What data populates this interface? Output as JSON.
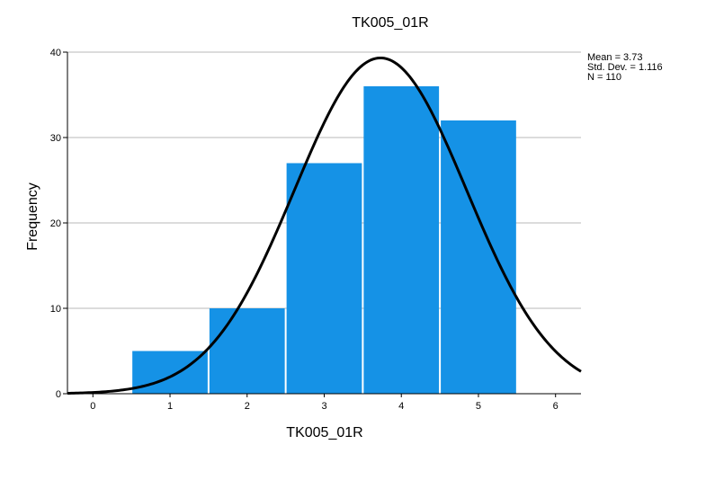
{
  "chart_data": {
    "type": "bar",
    "title": "TK005_01R",
    "xlabel": "TK005_01R",
    "ylabel": "Frequency",
    "categories": [
      "1",
      "2",
      "3",
      "4",
      "5"
    ],
    "x": [
      1,
      2,
      3,
      4,
      5
    ],
    "values": [
      5,
      10,
      27,
      36,
      32
    ],
    "xlim": [
      -0.33,
      6.33
    ],
    "ylim": [
      0,
      40
    ],
    "x_ticks": [
      "0",
      "1",
      "2",
      "3",
      "4",
      "5",
      "6"
    ],
    "y_ticks": [
      "0",
      "10",
      "20",
      "30",
      "40"
    ],
    "grid": "horizontal",
    "bar_color": "#1592e6",
    "curve_color": "#000000",
    "normal_curve": {
      "mean": 3.73,
      "std_dev": 1.116,
      "n": 110,
      "bin_width": 1
    },
    "stats_text": [
      "Mean = 3.73",
      "Std. Dev. = 1.116",
      "N = 110"
    ]
  }
}
